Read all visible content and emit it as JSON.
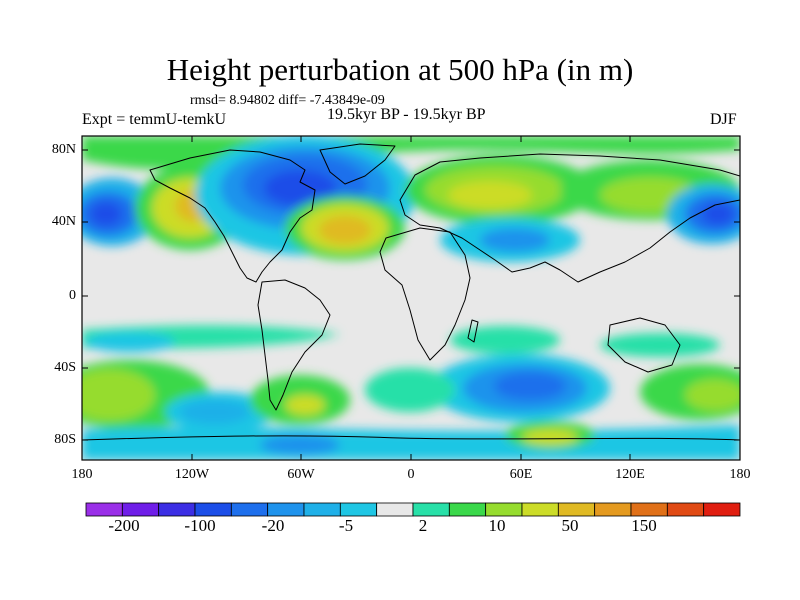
{
  "title": "Height perturbation at 500 hPa (in m)",
  "stats": "rmsd= 8.94802 diff= -7.43849e-09",
  "experiment": "Expt = temmU-temkU",
  "period": "19.5kyr BP - 19.5kyr BP",
  "season": "DJF",
  "map": {
    "lat_labels": [
      "80N",
      "40N",
      "0",
      "40S",
      "80S"
    ],
    "lon_labels": [
      "180",
      "120W",
      "60W",
      "0",
      "60E",
      "120E",
      "180"
    ]
  },
  "colorbar": {
    "colors": [
      "#9a2fe8",
      "#6f1ee8",
      "#3c2ee4",
      "#1c4ee8",
      "#1e6fec",
      "#1f93ec",
      "#1fb0e8",
      "#1fc6e4",
      "#e8e8e8",
      "#28e0a8",
      "#3ad84a",
      "#96dc2e",
      "#ccdc28",
      "#e0ba24",
      "#e49a20",
      "#e07018",
      "#e04a14",
      "#e01e10"
    ],
    "labels": [
      "-200",
      "-100",
      "-20",
      "-5",
      "2",
      "10",
      "50",
      "150"
    ]
  }
}
